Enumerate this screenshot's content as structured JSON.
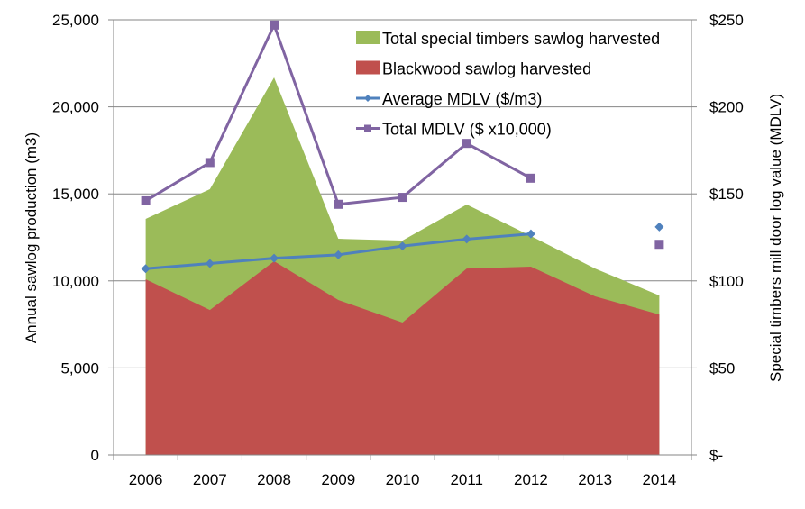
{
  "chart_data": {
    "type": "area",
    "categories": [
      "2006",
      "2007",
      "2008",
      "2009",
      "2010",
      "2011",
      "2012",
      "2013",
      "2014"
    ],
    "ylabel": "Annual sawlog production (m3)",
    "y2label": "Special timbers  mill door log value (MDLV)",
    "ylim": [
      0,
      25000
    ],
    "y2lim": [
      0,
      250
    ],
    "yticks": [
      "0",
      "5,000",
      "10,000",
      "15,000",
      "20,000",
      "25,000"
    ],
    "y2ticks": [
      "$-",
      "$50",
      "$100",
      "$150",
      "$200",
      "$250"
    ],
    "grid": true,
    "legend_position": "top-right",
    "series": [
      {
        "name": "Total special timbers sawlog harvested",
        "kind": "area",
        "axis": "left",
        "color": "#9BBB59",
        "values": [
          13560,
          15270,
          21690,
          12420,
          12320,
          14390,
          12580,
          10710,
          9160
        ]
      },
      {
        "name": "Blackwood sawlog harvested",
        "kind": "area",
        "axis": "left",
        "color": "#C0504D",
        "values": [
          10090,
          8330,
          11130,
          8900,
          7610,
          10710,
          10820,
          9110,
          8070
        ]
      },
      {
        "name": "Average MDLV ($/m3)",
        "kind": "line",
        "marker": "diamond",
        "axis": "right",
        "color": "#4F81BD",
        "values": [
          107,
          110,
          113,
          115,
          120,
          124,
          127,
          null,
          131
        ]
      },
      {
        "name": "Total MDLV ($ x10,000)",
        "kind": "line",
        "marker": "square",
        "axis": "right",
        "color": "#8064A2",
        "values": [
          146,
          168,
          247,
          144,
          148,
          179,
          159,
          null,
          121
        ]
      }
    ]
  }
}
